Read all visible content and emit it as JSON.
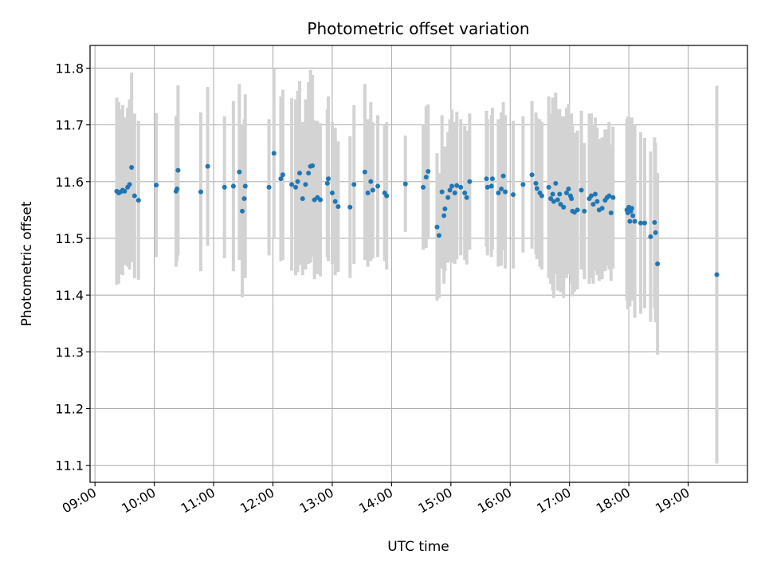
{
  "chart_data": {
    "type": "scatter",
    "title": "Photometric offset variation",
    "xlabel": "UTC time",
    "ylabel": "Photometric offset",
    "grid": true,
    "xlim": [
      "08:55",
      "20:00"
    ],
    "ylim": [
      11.07,
      11.84
    ],
    "x_ticks": [
      "09:00",
      "10:00",
      "11:00",
      "12:00",
      "13:00",
      "14:00",
      "15:00",
      "16:00",
      "17:00",
      "18:00",
      "19:00"
    ],
    "y_ticks": [
      11.1,
      11.2,
      11.3,
      11.4,
      11.5,
      11.6,
      11.7,
      11.8
    ],
    "colors": {
      "point": "#1f77b4",
      "errorbar": "#d3d3d3",
      "grid": "#b0b0b0"
    },
    "series": [
      {
        "points": [
          {
            "x": "09:22",
            "y": 11.583,
            "err": 0.165
          },
          {
            "x": "09:24",
            "y": 11.58,
            "err": 0.16
          },
          {
            "x": "09:26",
            "y": 11.582,
            "err": 0.145
          },
          {
            "x": "09:28",
            "y": 11.585,
            "err": 0.15
          },
          {
            "x": "09:30",
            "y": 11.583,
            "err": 0.13
          },
          {
            "x": "09:33",
            "y": 11.59,
            "err": 0.14
          },
          {
            "x": "09:35",
            "y": 11.595,
            "err": 0.15
          },
          {
            "x": "09:37",
            "y": 11.625,
            "err": 0.167
          },
          {
            "x": "09:40",
            "y": 11.575,
            "err": 0.145
          },
          {
            "x": "09:44",
            "y": 11.567,
            "err": 0.14
          },
          {
            "x": "10:02",
            "y": 11.594,
            "err": 0.127
          },
          {
            "x": "10:22",
            "y": 11.583,
            "err": 0.133
          },
          {
            "x": "10:23",
            "y": 11.587,
            "err": 0.127
          },
          {
            "x": "10:24",
            "y": 11.62,
            "err": 0.15
          },
          {
            "x": "10:47",
            "y": 11.582,
            "err": 0.14
          },
          {
            "x": "10:54",
            "y": 11.627,
            "err": 0.14
          },
          {
            "x": "11:11",
            "y": 11.59,
            "err": 0.125
          },
          {
            "x": "11:20",
            "y": 11.592,
            "err": 0.15
          },
          {
            "x": "11:26",
            "y": 11.617,
            "err": 0.155
          },
          {
            "x": "11:29",
            "y": 11.548,
            "err": 0.152
          },
          {
            "x": "11:31",
            "y": 11.57,
            "err": 0.14
          },
          {
            "x": "11:32",
            "y": 11.592,
            "err": 0.162
          },
          {
            "x": "11:56",
            "y": 11.59,
            "err": 0.12
          },
          {
            "x": "12:01",
            "y": 11.65,
            "err": 0.15
          },
          {
            "x": "12:08",
            "y": 11.605,
            "err": 0.145
          },
          {
            "x": "12:10",
            "y": 11.612,
            "err": 0.15
          },
          {
            "x": "12:19",
            "y": 11.595,
            "err": 0.152
          },
          {
            "x": "12:23",
            "y": 11.59,
            "err": 0.155
          },
          {
            "x": "12:25",
            "y": 11.6,
            "err": 0.16
          },
          {
            "x": "12:27",
            "y": 11.615,
            "err": 0.162
          },
          {
            "x": "12:30",
            "y": 11.57,
            "err": 0.135
          },
          {
            "x": "12:33",
            "y": 11.595,
            "err": 0.15
          },
          {
            "x": "12:36",
            "y": 11.615,
            "err": 0.16
          },
          {
            "x": "12:38",
            "y": 11.627,
            "err": 0.17
          },
          {
            "x": "12:40",
            "y": 11.628,
            "err": 0.16
          },
          {
            "x": "12:42",
            "y": 11.568,
            "err": 0.14
          },
          {
            "x": "12:45",
            "y": 11.572,
            "err": 0.135
          },
          {
            "x": "12:48",
            "y": 11.568,
            "err": 0.135
          },
          {
            "x": "12:55",
            "y": 11.597,
            "err": 0.13
          },
          {
            "x": "12:56",
            "y": 11.605,
            "err": 0.145
          },
          {
            "x": "13:00",
            "y": 11.58,
            "err": 0.125
          },
          {
            "x": "13:03",
            "y": 11.565,
            "err": 0.13
          },
          {
            "x": "13:06",
            "y": 11.556,
            "err": 0.115
          },
          {
            "x": "13:18",
            "y": 11.555,
            "err": 0.125
          },
          {
            "x": "13:22",
            "y": 11.595,
            "err": 0.14
          },
          {
            "x": "13:33",
            "y": 11.617,
            "err": 0.155
          },
          {
            "x": "13:36",
            "y": 11.58,
            "err": 0.13
          },
          {
            "x": "13:39",
            "y": 11.6,
            "err": 0.14
          },
          {
            "x": "13:41",
            "y": 11.585,
            "err": 0.12
          },
          {
            "x": "13:46",
            "y": 11.592,
            "err": 0.125
          },
          {
            "x": "13:53",
            "y": 11.58,
            "err": 0.12
          },
          {
            "x": "13:55",
            "y": 11.575,
            "err": 0.13
          },
          {
            "x": "14:14",
            "y": 11.596,
            "err": 0.085
          },
          {
            "x": "14:32",
            "y": 11.59,
            "err": 0.11
          },
          {
            "x": "14:35",
            "y": 11.608,
            "err": 0.125
          },
          {
            "x": "14:37",
            "y": 11.618,
            "err": 0.118
          },
          {
            "x": "14:46",
            "y": 11.52,
            "err": 0.13
          },
          {
            "x": "14:48",
            "y": 11.505,
            "err": 0.11
          },
          {
            "x": "14:51",
            "y": 11.582,
            "err": 0.135
          },
          {
            "x": "14:53",
            "y": 11.54,
            "err": 0.12
          },
          {
            "x": "14:54",
            "y": 11.552,
            "err": 0.11
          },
          {
            "x": "14:57",
            "y": 11.572,
            "err": 0.115
          },
          {
            "x": "14:59",
            "y": 11.585,
            "err": 0.125
          },
          {
            "x": "15:01",
            "y": 11.592,
            "err": 0.135
          },
          {
            "x": "15:04",
            "y": 11.58,
            "err": 0.125
          },
          {
            "x": "15:06",
            "y": 11.593,
            "err": 0.13
          },
          {
            "x": "15:10",
            "y": 11.59,
            "err": 0.12
          },
          {
            "x": "15:14",
            "y": 11.58,
            "err": 0.118
          },
          {
            "x": "15:16",
            "y": 11.572,
            "err": 0.118
          },
          {
            "x": "15:19",
            "y": 11.6,
            "err": 0.12
          },
          {
            "x": "15:36",
            "y": 11.605,
            "err": 0.12
          },
          {
            "x": "15:37",
            "y": 11.59,
            "err": 0.12
          },
          {
            "x": "15:41",
            "y": 11.592,
            "err": 0.125
          },
          {
            "x": "15:42",
            "y": 11.605,
            "err": 0.125
          },
          {
            "x": "15:48",
            "y": 11.58,
            "err": 0.13
          },
          {
            "x": "15:51",
            "y": 11.587,
            "err": 0.135
          },
          {
            "x": "15:53",
            "y": 11.61,
            "err": 0.13
          },
          {
            "x": "15:55",
            "y": 11.582,
            "err": 0.135
          },
          {
            "x": "16:03",
            "y": 11.577,
            "err": 0.13
          },
          {
            "x": "16:13",
            "y": 11.595,
            "err": 0.12
          },
          {
            "x": "16:22",
            "y": 11.612,
            "err": 0.13
          },
          {
            "x": "16:26",
            "y": 11.597,
            "err": 0.125
          },
          {
            "x": "16:27",
            "y": 11.588,
            "err": 0.125
          },
          {
            "x": "16:30",
            "y": 11.58,
            "err": 0.13
          },
          {
            "x": "16:32",
            "y": 11.575,
            "err": 0.13
          },
          {
            "x": "16:39",
            "y": 11.59,
            "err": 0.16
          },
          {
            "x": "16:41",
            "y": 11.57,
            "err": 0.15
          },
          {
            "x": "16:43",
            "y": 11.578,
            "err": 0.17
          },
          {
            "x": "16:44",
            "y": 11.565,
            "err": 0.17
          },
          {
            "x": "16:46",
            "y": 11.597,
            "err": 0.16
          },
          {
            "x": "16:48",
            "y": 11.568,
            "err": 0.16
          },
          {
            "x": "16:50",
            "y": 11.578,
            "err": 0.15
          },
          {
            "x": "16:51",
            "y": 11.56,
            "err": 0.155
          },
          {
            "x": "16:54",
            "y": 11.555,
            "err": 0.16
          },
          {
            "x": "16:57",
            "y": 11.58,
            "err": 0.15
          },
          {
            "x": "16:59",
            "y": 11.587,
            "err": 0.15
          },
          {
            "x": "17:01",
            "y": 11.575,
            "err": 0.14
          },
          {
            "x": "17:02",
            "y": 11.57,
            "err": 0.15
          },
          {
            "x": "17:03",
            "y": 11.548,
            "err": 0.15
          },
          {
            "x": "17:05",
            "y": 11.546,
            "err": 0.14
          },
          {
            "x": "17:08",
            "y": 11.55,
            "err": 0.14
          },
          {
            "x": "17:12",
            "y": 11.585,
            "err": 0.14
          },
          {
            "x": "17:15",
            "y": 11.548,
            "err": 0.12
          },
          {
            "x": "17:20",
            "y": 11.57,
            "err": 0.15
          },
          {
            "x": "17:22",
            "y": 11.575,
            "err": 0.145
          },
          {
            "x": "17:24",
            "y": 11.56,
            "err": 0.14
          },
          {
            "x": "17:26",
            "y": 11.578,
            "err": 0.135
          },
          {
            "x": "17:28",
            "y": 11.565,
            "err": 0.13
          },
          {
            "x": "17:30",
            "y": 11.55,
            "err": 0.125
          },
          {
            "x": "17:33",
            "y": 11.553,
            "err": 0.125
          },
          {
            "x": "17:36",
            "y": 11.567,
            "err": 0.125
          },
          {
            "x": "17:38",
            "y": 11.572,
            "err": 0.12
          },
          {
            "x": "17:40",
            "y": 11.575,
            "err": 0.13
          },
          {
            "x": "17:42",
            "y": 11.545,
            "err": 0.12
          },
          {
            "x": "17:44",
            "y": 11.572,
            "err": 0.125
          },
          {
            "x": "17:58",
            "y": 11.55,
            "err": 0.16
          },
          {
            "x": "17:59",
            "y": 11.545,
            "err": 0.17
          },
          {
            "x": "18:00",
            "y": 11.555,
            "err": 0.16
          },
          {
            "x": "18:01",
            "y": 11.53,
            "err": 0.15
          },
          {
            "x": "18:02",
            "y": 11.548,
            "err": 0.15
          },
          {
            "x": "18:03",
            "y": 11.553,
            "err": 0.16
          },
          {
            "x": "18:04",
            "y": 11.54,
            "err": 0.15
          },
          {
            "x": "18:06",
            "y": 11.53,
            "err": 0.17
          },
          {
            "x": "18:12",
            "y": 11.527,
            "err": 0.16
          },
          {
            "x": "18:16",
            "y": 11.527,
            "err": 0.15
          },
          {
            "x": "18:22",
            "y": 11.503,
            "err": 0.15
          },
          {
            "x": "18:26",
            "y": 11.528,
            "err": 0.15
          },
          {
            "x": "18:27",
            "y": 11.51,
            "err": 0.158
          },
          {
            "x": "18:29",
            "y": 11.455,
            "err": 0.16
          },
          {
            "x": "19:29",
            "y": 11.436,
            "err": 0.333
          }
        ]
      }
    ]
  }
}
